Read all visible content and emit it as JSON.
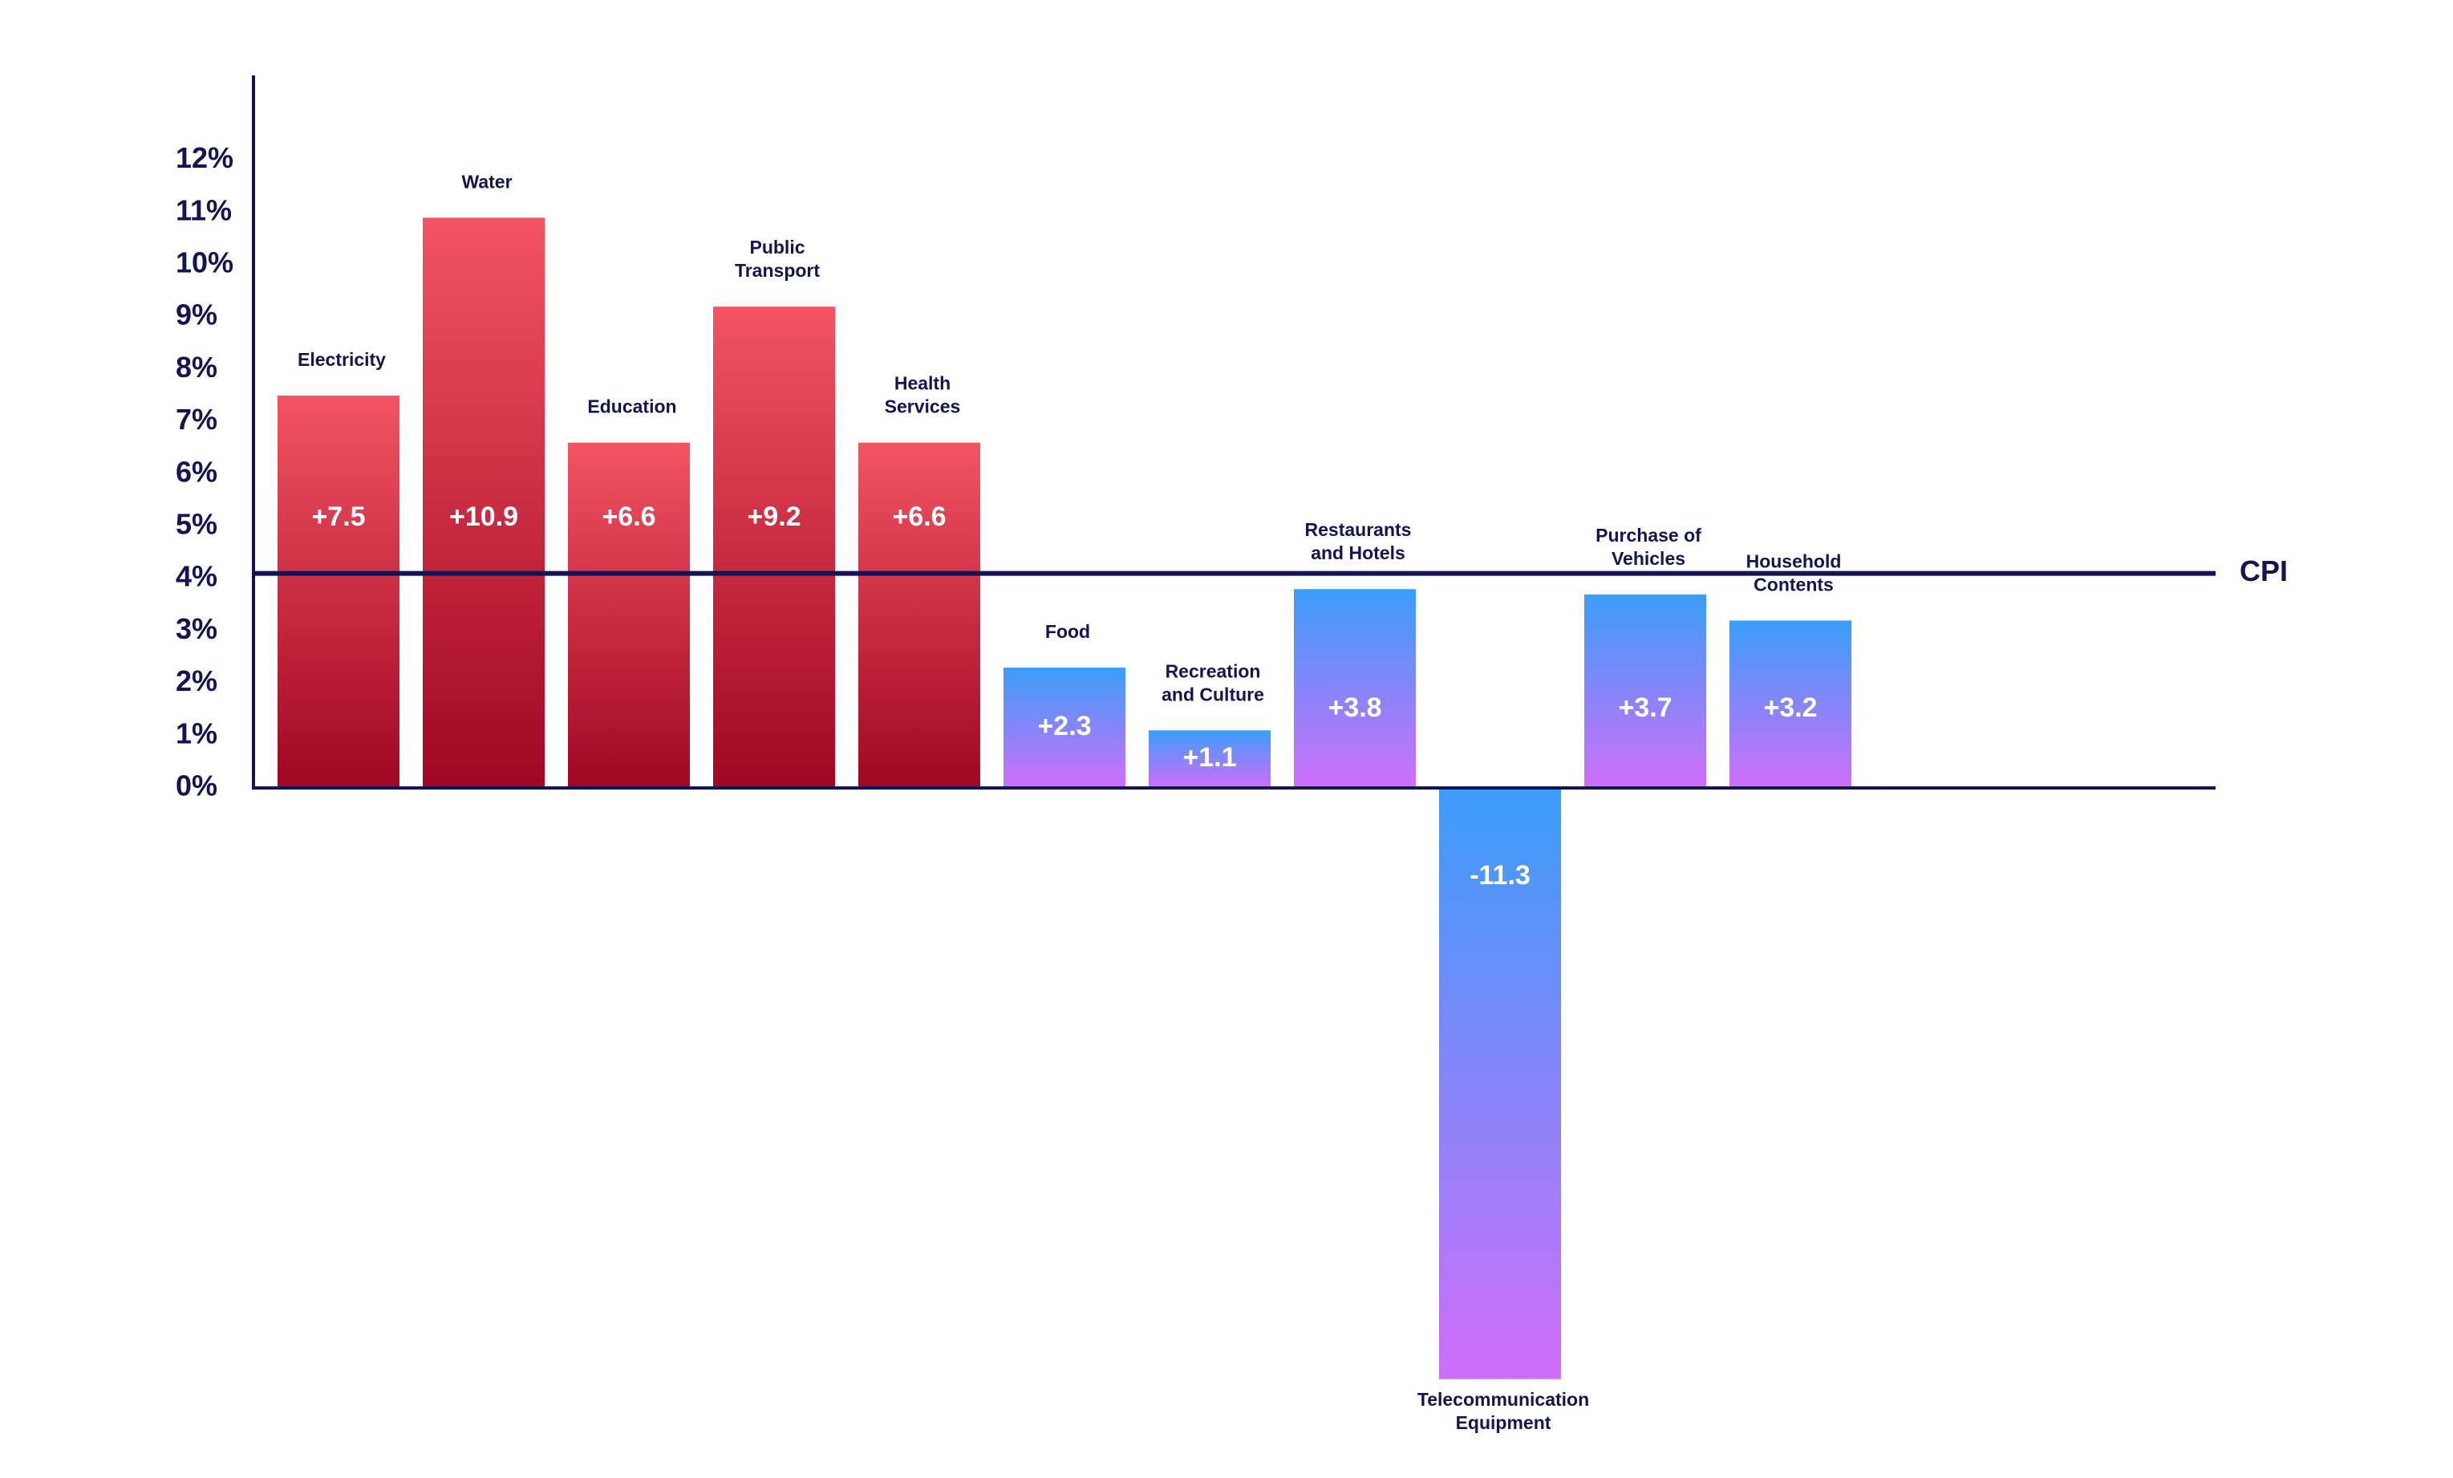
{
  "chart_data": {
    "type": "bar",
    "title": "",
    "xlabel": "",
    "ylabel": "",
    "ylim": [
      -12,
      12
    ],
    "y_ticks": [
      "0%",
      "1%",
      "2%",
      "3%",
      "4%",
      "5%",
      "6%",
      "7%",
      "8%",
      "9%",
      "10%",
      "11%",
      "12%"
    ],
    "categories": [
      [
        "Electricity"
      ],
      [
        "Water"
      ],
      [
        "Education"
      ],
      [
        "Public",
        "Transport"
      ],
      [
        "Health",
        "Services"
      ],
      [
        "Food"
      ],
      [
        "Recreation",
        "and Culture"
      ],
      [
        "Restaurants",
        "and Hotels"
      ],
      [
        "Telecommunication",
        "Equipment"
      ],
      [
        "Purchase of",
        "Vehicles"
      ],
      [
        "Household",
        "Contents"
      ]
    ],
    "values": [
      7.5,
      10.9,
      6.6,
      9.2,
      6.6,
      2.3,
      1.1,
      3.8,
      -11.3,
      3.7,
      3.2
    ],
    "value_labels": [
      "+7.5",
      "+10.9",
      "+6.6",
      "+9.2",
      "+6.6",
      "+2.3",
      "+1.1",
      "+3.8",
      "-11.3",
      "+3.7",
      "+3.2"
    ],
    "reference_line": {
      "label": "CPI",
      "value": 4.1
    },
    "grid": false,
    "legend": "none",
    "colors": {
      "axis": "#141452",
      "above_cpi_top": "#f25463",
      "above_cpi_bottom": "#a10622",
      "below_cpi_top": "#3b9df8",
      "below_cpi_bottom": "#d06efb"
    }
  }
}
